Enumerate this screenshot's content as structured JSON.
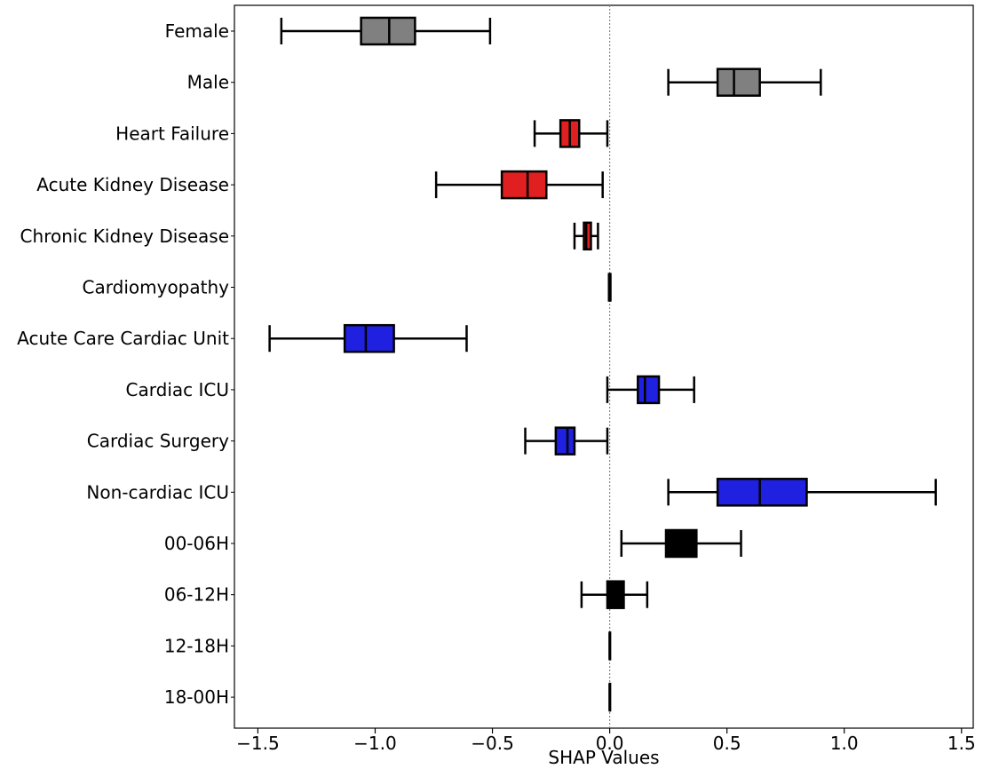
{
  "chart_data": {
    "type": "box",
    "orientation": "horizontal",
    "xlabel": "SHAP Values",
    "xlim": [
      -1.6,
      1.55
    ],
    "xticks": [
      -1.5,
      -1.0,
      -0.5,
      0.0,
      0.5,
      1.0,
      1.5
    ],
    "xtick_labels": [
      "−1.5",
      "−1.0",
      "−0.5",
      "0.0",
      "0.5",
      "1.0",
      "1.5"
    ],
    "reference_line_x": 0.0,
    "grid": false,
    "categories": [
      {
        "label": "Female",
        "color": "#808080",
        "whisker_low": -1.4,
        "q1": -1.06,
        "median": -0.94,
        "q3": -0.83,
        "whisker_high": -0.51
      },
      {
        "label": "Male",
        "color": "#808080",
        "whisker_low": 0.25,
        "q1": 0.46,
        "median": 0.53,
        "q3": 0.64,
        "whisker_high": 0.9
      },
      {
        "label": "Heart Failure",
        "color": "#e02020",
        "whisker_low": -0.32,
        "q1": -0.21,
        "median": -0.17,
        "q3": -0.13,
        "whisker_high": -0.01
      },
      {
        "label": "Acute Kidney Disease",
        "color": "#e02020",
        "whisker_low": -0.74,
        "q1": -0.46,
        "median": -0.35,
        "q3": -0.27,
        "whisker_high": -0.03
      },
      {
        "label": "Chronic Kidney Disease",
        "color": "#e02020",
        "whisker_low": -0.15,
        "q1": -0.11,
        "median": -0.1,
        "q3": -0.08,
        "whisker_high": -0.05
      },
      {
        "label": "Cardiomyopathy",
        "color": "#000000",
        "whisker_low": -0.003,
        "q1": -0.003,
        "median": 0.0,
        "q3": 0.003,
        "whisker_high": 0.003
      },
      {
        "label": "Acute Care Cardiac Unit",
        "color": "#2020e0",
        "whisker_low": -1.45,
        "q1": -1.13,
        "median": -1.04,
        "q3": -0.92,
        "whisker_high": -0.61
      },
      {
        "label": "Cardiac ICU",
        "color": "#2020e0",
        "whisker_low": -0.01,
        "q1": 0.12,
        "median": 0.15,
        "q3": 0.21,
        "whisker_high": 0.36
      },
      {
        "label": "Cardiac Surgery",
        "color": "#2020e0",
        "whisker_low": -0.36,
        "q1": -0.23,
        "median": -0.18,
        "q3": -0.15,
        "whisker_high": -0.01
      },
      {
        "label": "Non-cardiac ICU",
        "color": "#2020e0",
        "whisker_low": 0.25,
        "q1": 0.46,
        "median": 0.64,
        "q3": 0.84,
        "whisker_high": 1.39
      },
      {
        "label": "00-06H",
        "color": "#000000",
        "whisker_low": 0.05,
        "q1": 0.24,
        "median": 0.3,
        "q3": 0.37,
        "whisker_high": 0.56
      },
      {
        "label": "06-12H",
        "color": "#000000",
        "whisker_low": -0.12,
        "q1": -0.01,
        "median": 0.02,
        "q3": 0.06,
        "whisker_high": 0.16
      },
      {
        "label": "12-18H",
        "color": "#000000",
        "whisker_low": 0.0,
        "q1": 0.0,
        "median": 0.0,
        "q3": 0.0,
        "whisker_high": 0.0
      },
      {
        "label": "18-00H",
        "color": "#000000",
        "whisker_low": 0.0,
        "q1": 0.0,
        "median": 0.0,
        "q3": 0.0,
        "whisker_high": 0.0
      }
    ]
  }
}
